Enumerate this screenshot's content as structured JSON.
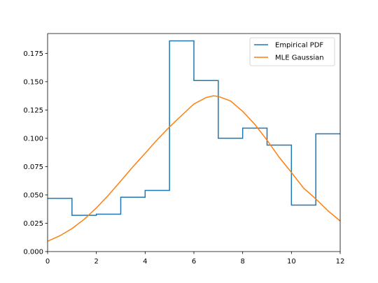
{
  "chart_data": {
    "type": "line",
    "xlim": [
      0,
      12
    ],
    "ylim": [
      0,
      0.1925
    ],
    "x_ticks": [
      0,
      2,
      4,
      6,
      8,
      10,
      12
    ],
    "x_tick_labels": [
      "0",
      "2",
      "4",
      "6",
      "8",
      "10",
      "12"
    ],
    "y_ticks": [
      0.0,
      0.025,
      0.05,
      0.075,
      0.1,
      0.125,
      0.15,
      0.175
    ],
    "y_tick_labels": [
      "0.000",
      "0.025",
      "0.050",
      "0.075",
      "0.100",
      "0.125",
      "0.150",
      "0.175"
    ],
    "grid": false,
    "legend_position": "upper right",
    "series": [
      {
        "name": "Empirical PDF",
        "kind": "step",
        "color": "#1f77b4",
        "bin_edges": [
          0,
          1,
          2,
          3,
          4,
          5,
          6,
          7,
          8,
          9,
          10,
          11,
          12
        ],
        "values": [
          0.047,
          0.032,
          0.033,
          0.048,
          0.054,
          0.186,
          0.151,
          0.1,
          0.109,
          0.094,
          0.041,
          0.104
        ]
      },
      {
        "name": "MLE Gaussian",
        "kind": "curve",
        "color": "#ff7f0e",
        "x": [
          0,
          0.5,
          1,
          1.5,
          2,
          2.5,
          3,
          3.5,
          4,
          4.5,
          5,
          5.5,
          6,
          6.5,
          6.8,
          7,
          7.5,
          8,
          8.5,
          9,
          9.5,
          10,
          10.5,
          11,
          11.5,
          12
        ],
        "y": [
          0.0091,
          0.0139,
          0.0203,
          0.0285,
          0.0385,
          0.0499,
          0.0623,
          0.0749,
          0.0868,
          0.0989,
          0.11,
          0.1203,
          0.1303,
          0.136,
          0.1375,
          0.137,
          0.133,
          0.1238,
          0.1123,
          0.0983,
          0.0832,
          0.0698,
          0.056,
          0.0465,
          0.036,
          0.027
        ]
      }
    ]
  }
}
